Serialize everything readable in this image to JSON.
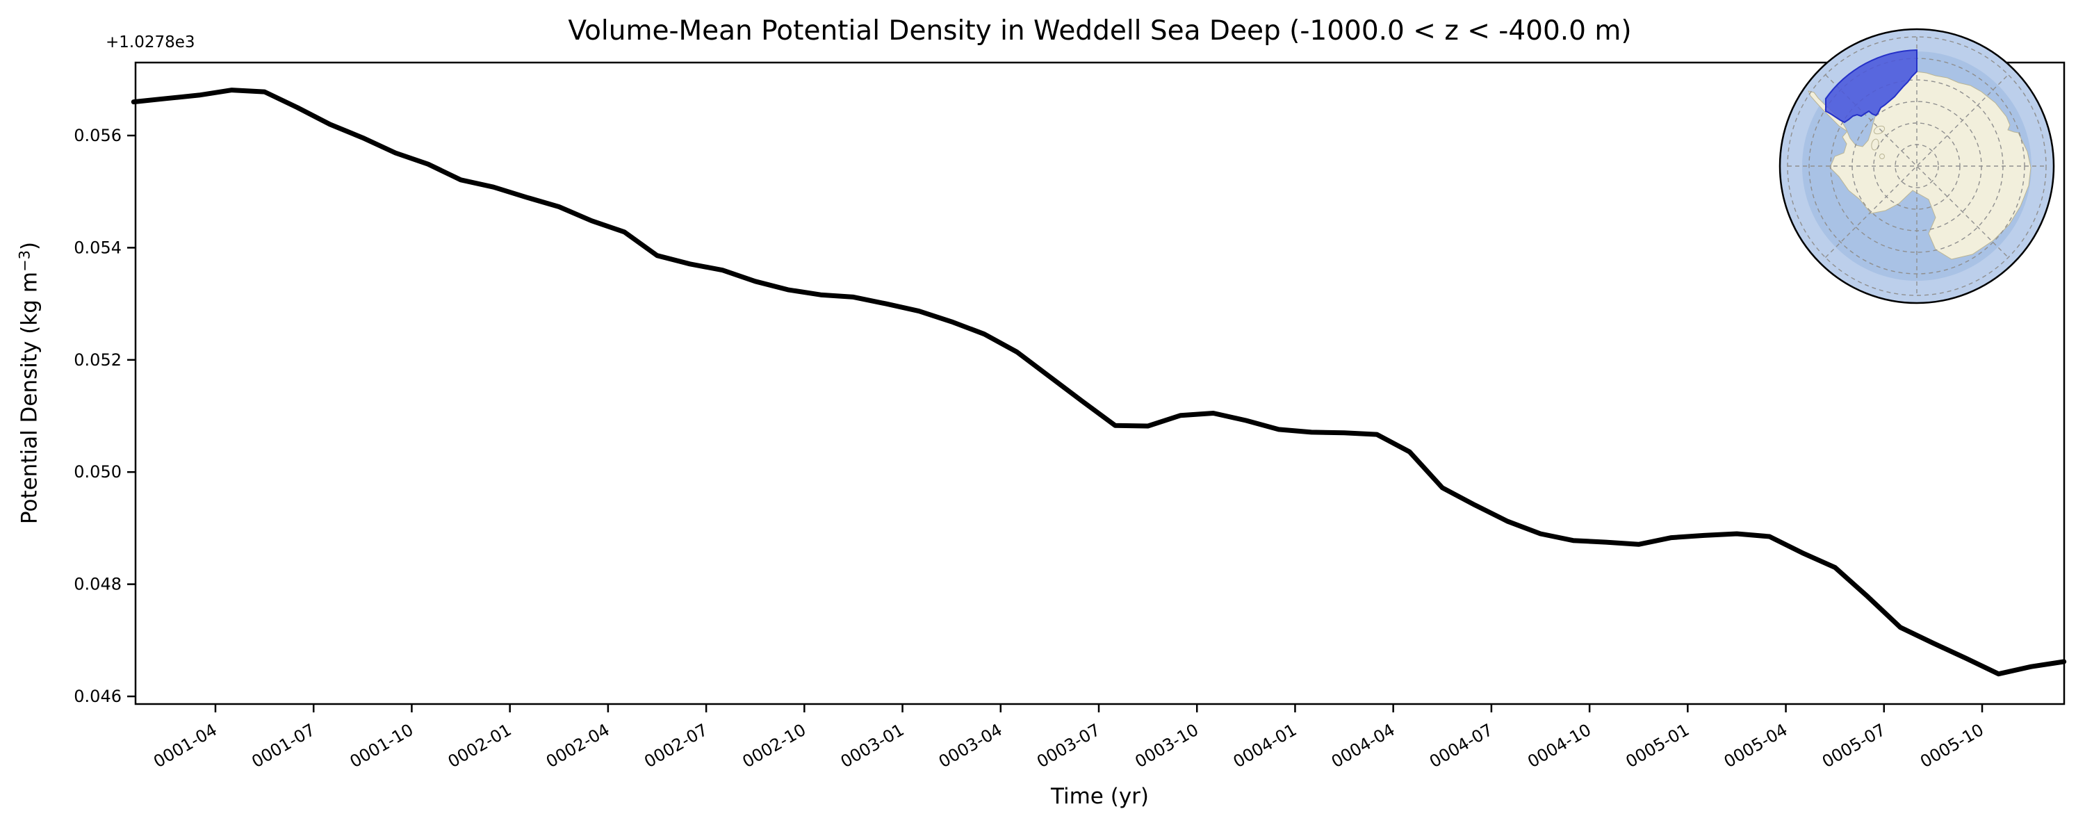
{
  "title": "Volume-Mean Potential Density in Weddell Sea Deep (-1000.0 < z < -400.0 m)",
  "axes": {
    "x_label": "Time (yr)",
    "y_label_prefix": "Potential Density (kg m",
    "y_label_sup": "−3",
    "y_label_suffix": ")",
    "offset_label": "+1.0278e3",
    "x_tick_labels": [
      "0001-04",
      "0001-07",
      "0001-10",
      "0002-01",
      "0002-04",
      "0002-07",
      "0002-10",
      "0003-01",
      "0003-04",
      "0003-07",
      "0003-10",
      "0004-01",
      "0004-04",
      "0004-07",
      "0004-10",
      "0005-01",
      "0005-04",
      "0005-07",
      "0005-10"
    ],
    "y_tick_labels": [
      "0.046",
      "0.048",
      "0.050",
      "0.052",
      "0.054",
      "0.056"
    ]
  },
  "chart_data": {
    "type": "line",
    "title": "Volume-Mean Potential Density in Weddell Sea Deep (-1000.0 < z < -400.0 m)",
    "xlabel": "Time (yr)",
    "ylabel": "Potential Density (kg m^-3)",
    "y_axis_offset": 1027.8,
    "y_axis_offset_label": "+1.0278e3",
    "xlim": [
      "0001-01",
      "0005-12"
    ],
    "ylim": [
      1027.84586,
      1027.8573
    ],
    "grid": false,
    "legend": "none",
    "line_color": "#000000",
    "x": [
      "0001-01",
      "0001-02",
      "0001-03",
      "0001-04",
      "0001-05",
      "0001-06",
      "0001-07",
      "0001-08",
      "0001-09",
      "0001-10",
      "0001-11",
      "0001-12",
      "0002-01",
      "0002-02",
      "0002-03",
      "0002-04",
      "0002-05",
      "0002-06",
      "0002-07",
      "0002-08",
      "0002-09",
      "0002-10",
      "0002-11",
      "0002-12",
      "0003-01",
      "0003-02",
      "0003-03",
      "0003-04",
      "0003-05",
      "0003-06",
      "0003-07",
      "0003-08",
      "0003-09",
      "0003-10",
      "0003-11",
      "0003-12",
      "0004-01",
      "0004-02",
      "0004-03",
      "0004-04",
      "0004-05",
      "0004-06",
      "0004-07",
      "0004-08",
      "0004-09",
      "0004-10",
      "0004-11",
      "0004-12",
      "0005-01",
      "0005-02",
      "0005-03",
      "0005-04",
      "0005-05",
      "0005-06",
      "0005-07",
      "0005-08",
      "0005-09",
      "0005-10",
      "0005-11",
      "0005-12"
    ],
    "values": [
      1027.8566,
      1027.85666,
      1027.85672,
      1027.85681,
      1027.85678,
      1027.8565,
      1027.8562,
      1027.85596,
      1027.85569,
      1027.85549,
      1027.85521,
      1027.85508,
      1027.8549,
      1027.85473,
      1027.85448,
      1027.85428,
      1027.85386,
      1027.85371,
      1027.8536,
      1027.8534,
      1027.85325,
      1027.85316,
      1027.85312,
      1027.853,
      1027.85287,
      1027.85268,
      1027.85246,
      1027.85214,
      1027.8517,
      1027.85126,
      1027.85083,
      1027.85082,
      1027.85101,
      1027.85105,
      1027.85092,
      1027.85076,
      1027.85071,
      1027.8507,
      1027.85067,
      1027.85036,
      1027.84972,
      1027.84941,
      1027.84912,
      1027.8489,
      1027.84878,
      1027.84875,
      1027.84871,
      1027.84883,
      1027.84887,
      1027.8489,
      1027.84885,
      1027.84856,
      1027.8483,
      1027.84778,
      1027.84723,
      1027.84695,
      1027.84668,
      1027.8464,
      1027.84653,
      1027.84662
    ]
  },
  "inset_map": {
    "projection": "south-polar-stereographic",
    "region_name": "Weddell Sea Deep",
    "colors": {
      "ocean": "#a9c2e5",
      "ocean_outer": "#bccfeb",
      "land": "#f2efdc",
      "coast": "#bab595",
      "region_fill": "#4a57dd",
      "region_edge": "#2531c8",
      "graticule": "#8f8f8f",
      "border": "#000000"
    }
  }
}
